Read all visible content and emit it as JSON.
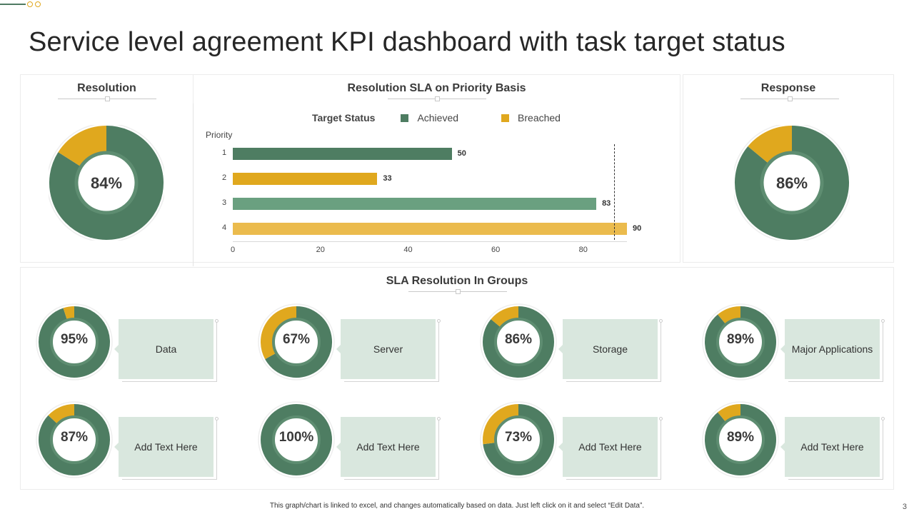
{
  "title": "Service level agreement KPI dashboard with task target status",
  "colors": {
    "green": "#4e7d62",
    "green_light": "#6aa080",
    "gold": "#e0a81e",
    "gold_light": "#ebbb4d",
    "box": "#d9e7de"
  },
  "resolution": {
    "title": "Resolution",
    "value": 84,
    "label": "84%"
  },
  "response": {
    "title": "Response",
    "value": 86,
    "label": "86%"
  },
  "chart_data": {
    "type": "bar",
    "orientation": "horizontal",
    "title": "Resolution SLA on Priority Basis",
    "legend_title": "Target Status",
    "legend": [
      "Achieved",
      "Breached"
    ],
    "ylabel": "Priority",
    "categories": [
      "1",
      "2",
      "3",
      "4"
    ],
    "values": [
      50,
      33,
      83,
      90
    ],
    "value_labels": [
      "50",
      "33",
      "83",
      "90"
    ],
    "status": [
      "Achieved",
      "Breached",
      "Achieved",
      "Breached"
    ],
    "xlim": [
      0,
      90
    ],
    "xticks": [
      "0",
      "20",
      "40",
      "60",
      "80"
    ],
    "target_line": 87
  },
  "groups": {
    "title": "SLA Resolution In Groups",
    "items": [
      {
        "value": 95,
        "label": "95%",
        "name": "Data"
      },
      {
        "value": 67,
        "label": "67%",
        "name": "Server"
      },
      {
        "value": 86,
        "label": "86%",
        "name": "Storage"
      },
      {
        "value": 89,
        "label": "89%",
        "name": "Major Applications"
      },
      {
        "value": 87,
        "label": "87%",
        "name": "Add Text Here"
      },
      {
        "value": 100,
        "label": "100%",
        "name": "Add Text Here"
      },
      {
        "value": 73,
        "label": "73%",
        "name": "Add Text Here"
      },
      {
        "value": 89,
        "label": "89%",
        "name": "Add Text Here"
      }
    ]
  },
  "footer": "This graph/chart is linked to excel, and changes automatically based on data. Just left click on it and select “Edit Data”.",
  "page_number": "3"
}
